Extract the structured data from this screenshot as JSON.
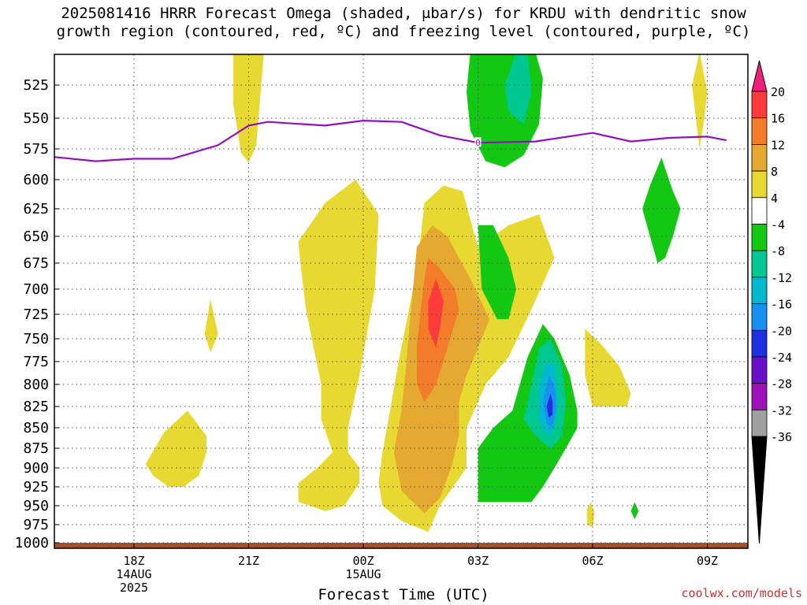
{
  "title_line1": "2025081416 HRRR Forecast Omega (shaded, μbar/s) for KRDU with dendritic snow",
  "title_line2": "growth region (contoured, red, ºC) and freezing level (contoured, purple, ºC)",
  "credit": "coolwx.com/models",
  "chart_data": {
    "type": "time-height cross-section (filled contour)",
    "xlabel": "Forecast Time (UTC)",
    "x_range_hours": [
      -2.6,
      15.5
    ],
    "x_ticks": [
      {
        "hour": 0,
        "lines": [
          "18Z",
          "14AUG",
          "2025"
        ]
      },
      {
        "hour": 3,
        "lines": [
          "21Z"
        ]
      },
      {
        "hour": 6,
        "lines": [
          "00Z",
          "15AUG"
        ]
      },
      {
        "hour": 9,
        "lines": [
          "03Z"
        ]
      },
      {
        "hour": 12,
        "lines": [
          "06Z"
        ]
      },
      {
        "hour": 15,
        "lines": [
          "09Z"
        ]
      }
    ],
    "y_ticks_hpa": [
      525,
      550,
      575,
      600,
      625,
      650,
      675,
      700,
      725,
      750,
      775,
      800,
      825,
      850,
      875,
      900,
      925,
      950,
      975,
      1000
    ],
    "y_range_hpa": [
      1005,
      500
    ],
    "grid": true,
    "colorbar": {
      "labels": [
        "20",
        "16",
        "12",
        "8",
        "4",
        "-4",
        "-8",
        "-12",
        "-16",
        "-20",
        "-24",
        "-28",
        "-32",
        "-36"
      ],
      "colors": [
        "#f0207a",
        "#ff3a3a",
        "#f27c2a",
        "#e5a830",
        "#e8d832",
        "#ffffff",
        "#12c812",
        "#00c890",
        "#00b8d0",
        "#1890f0",
        "#2030e0",
        "#6a10c8",
        "#a010b8",
        "#a0a0a0",
        "#000000"
      ]
    },
    "freezing_level": {
      "color": "#9010c0",
      "label": "0",
      "points": [
        [
          -2.6,
          580
        ],
        [
          -1.0,
          585
        ],
        [
          0,
          583
        ],
        [
          1.0,
          583
        ],
        [
          2.2,
          572
        ],
        [
          3.0,
          556
        ],
        [
          3.5,
          553
        ],
        [
          5.0,
          556
        ],
        [
          6.0,
          552
        ],
        [
          7.0,
          553
        ],
        [
          8.0,
          564
        ],
        [
          9.0,
          570
        ],
        [
          10.5,
          569
        ],
        [
          12.0,
          562
        ],
        [
          13.0,
          569
        ],
        [
          14.0,
          566
        ],
        [
          15.0,
          565
        ],
        [
          15.5,
          568
        ]
      ]
    },
    "omega_regions": [
      {
        "level": "4",
        "color": "#e8d832",
        "points": [
          [
            2.6,
            500
          ],
          [
            3.4,
            500
          ],
          [
            3.2,
            572
          ],
          [
            3.0,
            586
          ],
          [
            2.8,
            578
          ],
          [
            2.6,
            540
          ]
        ]
      },
      {
        "level": "4",
        "color": "#e8d832",
        "points": [
          [
            4.3,
            655
          ],
          [
            5.0,
            620
          ],
          [
            5.8,
            600
          ],
          [
            6.4,
            630
          ],
          [
            6.3,
            700
          ],
          [
            5.9,
            790
          ],
          [
            5.6,
            850
          ],
          [
            5.6,
            880
          ],
          [
            5.9,
            900
          ],
          [
            5.9,
            920
          ],
          [
            5.5,
            950
          ],
          [
            5.0,
            957
          ],
          [
            4.3,
            945
          ],
          [
            4.3,
            920
          ],
          [
            4.8,
            900
          ],
          [
            5.2,
            880
          ],
          [
            4.9,
            840
          ],
          [
            4.9,
            800
          ],
          [
            4.7,
            760
          ],
          [
            4.5,
            720
          ],
          [
            4.4,
            690
          ]
        ]
      },
      {
        "level": "4",
        "color": "#e8d832",
        "points": [
          [
            2.0,
            710
          ],
          [
            2.2,
            745
          ],
          [
            2.0,
            765
          ],
          [
            1.85,
            745
          ]
        ]
      },
      {
        "level": "4",
        "color": "#e8d832",
        "points": [
          [
            0.3,
            895
          ],
          [
            0.8,
            855
          ],
          [
            1.4,
            830
          ],
          [
            1.9,
            860
          ],
          [
            1.9,
            880
          ],
          [
            1.7,
            910
          ],
          [
            1.3,
            925
          ],
          [
            0.9,
            925
          ],
          [
            0.5,
            910
          ]
        ]
      },
      {
        "level": "4",
        "color": "#e8d832",
        "points": [
          [
            7.6,
            620
          ],
          [
            8.1,
            605
          ],
          [
            8.6,
            610
          ],
          [
            9.0,
            660
          ],
          [
            9.8,
            640
          ],
          [
            10.6,
            630
          ],
          [
            11.0,
            670
          ],
          [
            10.4,
            720
          ],
          [
            9.8,
            770
          ],
          [
            9.2,
            800
          ],
          [
            8.7,
            850
          ],
          [
            8.7,
            900
          ],
          [
            8.0,
            950
          ],
          [
            7.7,
            985
          ],
          [
            7.0,
            970
          ],
          [
            6.5,
            950
          ],
          [
            6.4,
            920
          ],
          [
            6.5,
            880
          ],
          [
            6.7,
            830
          ],
          [
            6.9,
            780
          ],
          [
            7.3,
            700
          ],
          [
            7.5,
            650
          ]
        ]
      },
      {
        "level": "-4",
        "color": "#12c812",
        "points": [
          [
            9.0,
            640
          ],
          [
            9.4,
            640
          ],
          [
            9.8,
            670
          ],
          [
            10.0,
            700
          ],
          [
            9.8,
            730
          ],
          [
            9.5,
            730
          ],
          [
            9.1,
            700
          ]
        ]
      },
      {
        "level": "4",
        "color": "#e8d832",
        "points": [
          [
            11.8,
            740
          ],
          [
            12.2,
            755
          ],
          [
            12.7,
            780
          ],
          [
            13.0,
            810
          ],
          [
            12.9,
            825
          ],
          [
            12.0,
            825
          ],
          [
            11.8,
            790
          ]
        ]
      },
      {
        "level": "4",
        "color": "#e8d832",
        "points": [
          [
            14.8,
            500
          ],
          [
            15.0,
            530
          ],
          [
            14.9,
            555
          ],
          [
            14.8,
            575
          ],
          [
            14.7,
            550
          ],
          [
            14.6,
            525
          ]
        ]
      },
      {
        "level": "4",
        "color": "#e8d832",
        "points": [
          [
            11.85,
            955
          ],
          [
            11.95,
            945
          ],
          [
            12.05,
            960
          ],
          [
            12.0,
            978
          ],
          [
            11.85,
            975
          ]
        ]
      },
      {
        "level": "8",
        "color": "#e5a830",
        "points": [
          [
            7.4,
            660
          ],
          [
            7.8,
            640
          ],
          [
            8.2,
            650
          ],
          [
            8.8,
            690
          ],
          [
            9.3,
            730
          ],
          [
            9.0,
            760
          ],
          [
            8.7,
            790
          ],
          [
            8.5,
            820
          ],
          [
            8.5,
            860
          ],
          [
            8.3,
            900
          ],
          [
            8.0,
            940
          ],
          [
            7.6,
            960
          ],
          [
            7.0,
            930
          ],
          [
            6.8,
            880
          ],
          [
            7.0,
            830
          ],
          [
            7.1,
            790
          ],
          [
            7.2,
            740
          ],
          [
            7.3,
            700
          ]
        ]
      },
      {
        "level": "12",
        "color": "#f27c2a",
        "points": [
          [
            7.7,
            670
          ],
          [
            8.0,
            680
          ],
          [
            8.4,
            700
          ],
          [
            8.5,
            720
          ],
          [
            8.2,
            760
          ],
          [
            7.9,
            800
          ],
          [
            7.6,
            820
          ],
          [
            7.4,
            800
          ],
          [
            7.4,
            760
          ],
          [
            7.5,
            720
          ],
          [
            7.6,
            690
          ]
        ]
      },
      {
        "level": "16",
        "color": "#ff3a3a",
        "points": [
          [
            7.9,
            690
          ],
          [
            8.1,
            712
          ],
          [
            8.0,
            740
          ],
          [
            7.9,
            760
          ],
          [
            7.7,
            740
          ],
          [
            7.7,
            712
          ]
        ]
      },
      {
        "level": "-4",
        "color": "#12c812",
        "points": [
          [
            9.6,
            500
          ],
          [
            10.5,
            500
          ],
          [
            10.7,
            520
          ],
          [
            10.6,
            555
          ],
          [
            10.2,
            580
          ],
          [
            9.7,
            590
          ],
          [
            9.2,
            585
          ],
          [
            8.8,
            560
          ],
          [
            8.7,
            530
          ],
          [
            8.8,
            500
          ]
        ]
      },
      {
        "level": "-8",
        "color": "#00c890",
        "points": [
          [
            10.0,
            500
          ],
          [
            10.3,
            500
          ],
          [
            10.4,
            530
          ],
          [
            10.2,
            555
          ],
          [
            9.8,
            545
          ],
          [
            9.7,
            525
          ]
        ]
      },
      {
        "level": "-4",
        "color": "#12c812",
        "points": [
          [
            9.0,
            875
          ],
          [
            9.4,
            850
          ],
          [
            9.9,
            830
          ],
          [
            10.3,
            770
          ],
          [
            10.7,
            735
          ],
          [
            11.0,
            750
          ],
          [
            11.4,
            790
          ],
          [
            11.6,
            830
          ],
          [
            11.6,
            850
          ],
          [
            11.3,
            875
          ],
          [
            11.0,
            900
          ],
          [
            10.7,
            925
          ],
          [
            10.4,
            945
          ],
          [
            9.0,
            945
          ]
        ]
      },
      {
        "level": "-8",
        "color": "#00c890",
        "points": [
          [
            10.6,
            760
          ],
          [
            10.9,
            750
          ],
          [
            11.2,
            780
          ],
          [
            11.3,
            820
          ],
          [
            11.2,
            860
          ],
          [
            10.9,
            875
          ],
          [
            10.5,
            860
          ],
          [
            10.2,
            840
          ],
          [
            10.4,
            800
          ]
        ]
      },
      {
        "level": "-12",
        "color": "#00b8d0",
        "points": [
          [
            10.8,
            775
          ],
          [
            11.0,
            780
          ],
          [
            11.1,
            820
          ],
          [
            11.0,
            850
          ],
          [
            10.8,
            860
          ],
          [
            10.6,
            840
          ],
          [
            10.6,
            800
          ]
        ]
      },
      {
        "level": "-16",
        "color": "#1890f0",
        "points": [
          [
            10.85,
            790
          ],
          [
            11.0,
            800
          ],
          [
            11.05,
            825
          ],
          [
            10.95,
            850
          ],
          [
            10.8,
            845
          ],
          [
            10.7,
            820
          ]
        ]
      },
      {
        "level": "-20",
        "color": "#2030e0",
        "points": [
          [
            10.9,
            810
          ],
          [
            10.95,
            820
          ],
          [
            10.95,
            835
          ],
          [
            10.85,
            838
          ],
          [
            10.8,
            825
          ]
        ]
      },
      {
        "level": "-4",
        "color": "#12c812",
        "points": [
          [
            13.8,
            582
          ],
          [
            14.1,
            610
          ],
          [
            14.3,
            625
          ],
          [
            14.1,
            650
          ],
          [
            13.9,
            670
          ],
          [
            13.7,
            675
          ],
          [
            13.5,
            650
          ],
          [
            13.3,
            625
          ],
          [
            13.5,
            605
          ],
          [
            13.7,
            590
          ]
        ]
      },
      {
        "level": "-4",
        "color": "#12c812",
        "points": [
          [
            13.1,
            945
          ],
          [
            13.2,
            957
          ],
          [
            13.1,
            968
          ],
          [
            13.0,
            957
          ]
        ]
      }
    ],
    "terrain_hpa": 1000,
    "terrain_color": "#a0522d"
  }
}
